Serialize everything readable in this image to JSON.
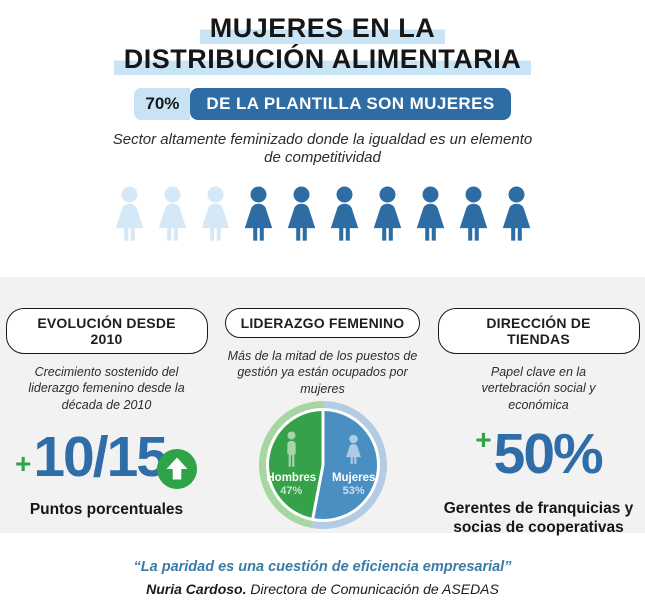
{
  "header": {
    "title_line1": "MUJERES EN LA",
    "title_line2": "DISTRIBUCIÓN ALIMENTARIA",
    "badge": {
      "percent": "70%",
      "label": "DE LA PLANTILLA SON MUJERES"
    },
    "subtitle": "Sector altamente feminizado donde la igualdad es un elemento de competitividad"
  },
  "columns": [
    {
      "pill": "EVOLUCIÓN DESDE 2010",
      "description": "Crecimiento sostenido del liderazgo femenino desde la década de 2010",
      "plus": "+",
      "big_number": "10/15",
      "caption": "Puntos porcentuales"
    },
    {
      "pill": "LIDERAZGO FEMENINO",
      "description": "Más de la mitad de los puestos de gestión ya están ocupados por mujeres"
    },
    {
      "pill": "DIRECCIÓN DE TIENDAS",
      "description": "Papel clave en la vertebración social y económica",
      "plus": "+",
      "big_number": "50%",
      "caption": "Gerentes de franquicias y socias de cooperativas"
    }
  ],
  "pie_labels": {
    "left_name": "Hombres",
    "left_value": "47%",
    "right_name": "Mujeres",
    "right_value": "53%"
  },
  "footer": {
    "quote": "“La paridad es una cuestión de eficiencia empresarial”",
    "author": "Nuria Cardoso.",
    "author_role": " Directora de Comunicación de ASEDAS"
  },
  "palette": {
    "dark_blue": "#2d6ca4",
    "number_blue": "#2f6da8",
    "light_blue": "#d4e8f8",
    "highlight_blue": "#c9e4f6",
    "green": "#2fa347",
    "section_gray": "#f2f2f2"
  },
  "chart_data": [
    {
      "type": "pie",
      "title": "LIDERAZGO FEMENINO",
      "labels": [
        "Hombres",
        "Mujeres"
      ],
      "values": [
        47,
        53
      ],
      "slices_clockwise_from_top": [
        {
          "label": "Mujeres",
          "value": 53,
          "color": "#4a8fc2",
          "ring_color": "#b3cbe3"
        },
        {
          "label": "Hombres",
          "value": 47,
          "color": "#35a24a",
          "ring_color": "#a8d6a2"
        }
      ],
      "legend_position": "inside"
    },
    {
      "type": "pictogram",
      "title": "DE LA PLANTILLA SON MUJERES",
      "value_pct": 70,
      "icons_total": 10,
      "icons_light": 3,
      "icons_dark": 7
    }
  ]
}
